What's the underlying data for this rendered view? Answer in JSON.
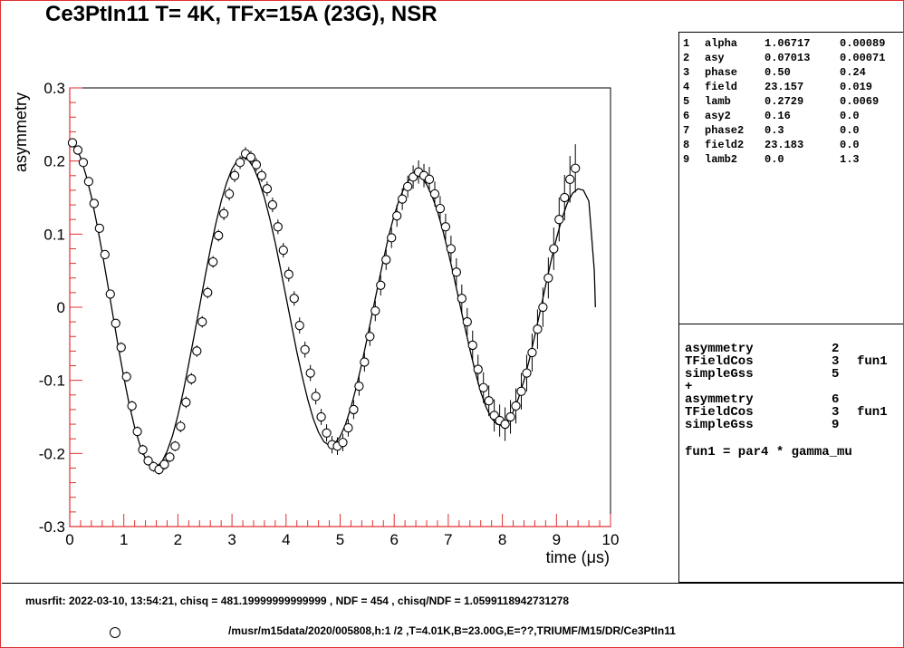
{
  "title": "Ce3PtIn11 T= 4K, TFx=15A  (23G), NSR",
  "parameters": [
    {
      "no": "1",
      "name": "alpha",
      "value": "1.06717",
      "error": "0.00089"
    },
    {
      "no": "2",
      "name": "asy",
      "value": "0.07013",
      "error": "0.00071"
    },
    {
      "no": "3",
      "name": "phase",
      "value": "0.50",
      "error": "0.24"
    },
    {
      "no": "4",
      "name": "field",
      "value": "23.157",
      "error": "0.019"
    },
    {
      "no": "5",
      "name": "lamb",
      "value": "0.2729",
      "error": "0.0069"
    },
    {
      "no": "6",
      "name": "asy2",
      "value": "0.16",
      "error": "0.0"
    },
    {
      "no": "7",
      "name": "phase2",
      "value": "0.3",
      "error": "0.0"
    },
    {
      "no": "8",
      "name": "field2",
      "value": "23.183",
      "error": "0.0"
    },
    {
      "no": "9",
      "name": "lamb2",
      "value": "0.0",
      "error": "1.3"
    }
  ],
  "theory": [
    {
      "a": "asymmetry",
      "b": "2",
      "c": ""
    },
    {
      "a": "TFieldCos",
      "b": "3",
      "c": "fun1"
    },
    {
      "a": "simpleGss",
      "b": "5",
      "c": ""
    },
    {
      "a": "+",
      "b": "",
      "c": ""
    },
    {
      "a": "asymmetry",
      "b": "6",
      "c": ""
    },
    {
      "a": "TFieldCos",
      "b": "3",
      "c": "fun1"
    },
    {
      "a": "simpleGss",
      "b": "9",
      "c": ""
    }
  ],
  "function_def": "fun1 = par4 * gamma_mu",
  "fit_info": "musrfit: 2022-03-10, 13:54:21, chisq = 481.19999999999999 , NDF = 454 , chisq/NDF = 1.0599118942731278",
  "legend_label": "/musr/m15data/2020/005808,h:1 /2 ,T=4.01K,B=23.00G,E=??,TRIUMF/M15/DR/Ce3PtIn11",
  "colors": {
    "frame": "#e03030",
    "axis": "#e03030",
    "data": "#000000"
  },
  "chart_data": {
    "type": "scatter",
    "xlabel": "time (μs)",
    "ylabel": "asymmetry",
    "xlim": [
      0,
      10
    ],
    "ylim": [
      -0.3,
      0.3
    ],
    "xticks": [
      "0",
      "1",
      "2",
      "3",
      "4",
      "5",
      "6",
      "7",
      "8",
      "9",
      "10"
    ],
    "yticks": [
      "-0.3",
      "-0.2",
      "-0.1",
      "0",
      "0.1",
      "0.2",
      "0.3"
    ],
    "grid": false,
    "series": [
      {
        "marker": "open-circle",
        "x": [
          0.05,
          0.15,
          0.25,
          0.35,
          0.45,
          0.55,
          0.65,
          0.75,
          0.85,
          0.95,
          1.05,
          1.15,
          1.25,
          1.35,
          1.45,
          1.55,
          1.65,
          1.75,
          1.85,
          1.95,
          2.05,
          2.15,
          2.25,
          2.35,
          2.45,
          2.55,
          2.65,
          2.75,
          2.85,
          2.95,
          3.05,
          3.15,
          3.25,
          3.35,
          3.45,
          3.55,
          3.65,
          3.75,
          3.85,
          3.95,
          4.05,
          4.15,
          4.25,
          4.35,
          4.45,
          4.55,
          4.65,
          4.75,
          4.85,
          4.95,
          5.05,
          5.15,
          5.25,
          5.35,
          5.45,
          5.55,
          5.65,
          5.75,
          5.85,
          5.95,
          6.05,
          6.15,
          6.25,
          6.35,
          6.45,
          6.55,
          6.65,
          6.75,
          6.85,
          6.95,
          7.05,
          7.15,
          7.25,
          7.35,
          7.45,
          7.55,
          7.65,
          7.75,
          7.85,
          7.95,
          8.05,
          8.15,
          8.25,
          8.35,
          8.45,
          8.55,
          8.65,
          8.75,
          8.85,
          8.95,
          9.05,
          9.15,
          9.25,
          9.35
        ],
        "y": [
          0.225,
          0.215,
          0.198,
          0.172,
          0.142,
          0.108,
          0.072,
          0.018,
          -0.022,
          -0.055,
          -0.095,
          -0.135,
          -0.17,
          -0.195,
          -0.21,
          -0.218,
          -0.222,
          -0.215,
          -0.205,
          -0.19,
          -0.163,
          -0.13,
          -0.098,
          -0.06,
          -0.02,
          0.02,
          0.062,
          0.098,
          0.128,
          0.155,
          0.18,
          0.198,
          0.21,
          0.205,
          0.195,
          0.18,
          0.162,
          0.14,
          0.11,
          0.078,
          0.045,
          0.012,
          -0.025,
          -0.058,
          -0.09,
          -0.122,
          -0.15,
          -0.172,
          -0.188,
          -0.19,
          -0.185,
          -0.165,
          -0.14,
          -0.108,
          -0.075,
          -0.04,
          -0.005,
          0.03,
          0.065,
          0.095,
          0.125,
          0.148,
          0.165,
          0.178,
          0.185,
          0.18,
          0.175,
          0.155,
          0.135,
          0.11,
          0.08,
          0.048,
          0.012,
          -0.02,
          -0.052,
          -0.085,
          -0.11,
          -0.128,
          -0.148,
          -0.155,
          -0.16,
          -0.15,
          -0.135,
          -0.115,
          -0.09,
          -0.062,
          -0.03,
          0.0,
          0.04,
          0.08,
          0.12,
          0.15,
          0.175,
          0.19
        ],
        "errors": [
          0.006,
          0.006,
          0.006,
          0.006,
          0.006,
          0.006,
          0.006,
          0.006,
          0.006,
          0.007,
          0.007,
          0.007,
          0.007,
          0.007,
          0.007,
          0.007,
          0.007,
          0.007,
          0.007,
          0.007,
          0.008,
          0.008,
          0.008,
          0.008,
          0.008,
          0.008,
          0.008,
          0.008,
          0.009,
          0.009,
          0.009,
          0.009,
          0.009,
          0.009,
          0.009,
          0.009,
          0.01,
          0.01,
          0.01,
          0.01,
          0.01,
          0.01,
          0.011,
          0.011,
          0.011,
          0.011,
          0.011,
          0.012,
          0.012,
          0.012,
          0.012,
          0.012,
          0.013,
          0.013,
          0.013,
          0.013,
          0.014,
          0.014,
          0.014,
          0.014,
          0.015,
          0.015,
          0.015,
          0.016,
          0.016,
          0.016,
          0.017,
          0.017,
          0.017,
          0.018,
          0.018,
          0.019,
          0.019,
          0.019,
          0.02,
          0.02,
          0.021,
          0.021,
          0.022,
          0.022,
          0.023,
          0.023,
          0.024,
          0.025,
          0.025,
          0.026,
          0.027,
          0.027,
          0.028,
          0.029,
          0.03,
          0.031,
          0.032,
          0.033
        ]
      },
      {
        "style": "line",
        "x": [
          0.0,
          0.1,
          0.2,
          0.3,
          0.4,
          0.5,
          0.6,
          0.7,
          0.8,
          0.9,
          1.0,
          1.1,
          1.2,
          1.3,
          1.4,
          1.5,
          1.6,
          1.7,
          1.8,
          1.9,
          2.0,
          2.1,
          2.2,
          2.3,
          2.4,
          2.5,
          2.6,
          2.7,
          2.8,
          2.9,
          3.0,
          3.1,
          3.2,
          3.3,
          3.4,
          3.5,
          3.6,
          3.7,
          3.8,
          3.9,
          4.0,
          4.1,
          4.2,
          4.3,
          4.4,
          4.5,
          4.6,
          4.7,
          4.8,
          4.9,
          5.0,
          5.1,
          5.2,
          5.3,
          5.4,
          5.5,
          5.6,
          5.7,
          5.8,
          5.9,
          6.0,
          6.1,
          6.2,
          6.3,
          6.4,
          6.5,
          6.6,
          6.7,
          6.8,
          6.9,
          7.0,
          7.1,
          7.2,
          7.3,
          7.4,
          7.5,
          7.6,
          7.7,
          7.8,
          7.9,
          8.0,
          8.1,
          8.2,
          8.3,
          8.4,
          8.5,
          8.6,
          8.7,
          8.8,
          8.9,
          9.0,
          9.1,
          9.2,
          9.3,
          9.4,
          9.5,
          9.6,
          9.7,
          9.72
        ],
        "y": [
          0.229,
          0.221,
          0.205,
          0.181,
          0.151,
          0.115,
          0.075,
          0.032,
          -0.012,
          -0.055,
          -0.096,
          -0.133,
          -0.164,
          -0.189,
          -0.207,
          -0.217,
          -0.218,
          -0.212,
          -0.197,
          -0.176,
          -0.148,
          -0.115,
          -0.078,
          -0.039,
          0.001,
          0.041,
          0.079,
          0.114,
          0.145,
          0.17,
          0.189,
          0.201,
          0.205,
          0.202,
          0.191,
          0.173,
          0.15,
          0.121,
          0.088,
          0.052,
          0.014,
          -0.024,
          -0.061,
          -0.095,
          -0.126,
          -0.152,
          -0.171,
          -0.184,
          -0.189,
          -0.186,
          -0.177,
          -0.16,
          -0.137,
          -0.109,
          -0.077,
          -0.042,
          -0.006,
          0.03,
          0.065,
          0.098,
          0.126,
          0.149,
          0.166,
          0.177,
          0.181,
          0.178,
          0.168,
          0.152,
          0.131,
          0.105,
          0.075,
          0.043,
          0.009,
          -0.025,
          -0.058,
          -0.089,
          -0.116,
          -0.137,
          -0.152,
          -0.16,
          -0.162,
          -0.156,
          -0.143,
          -0.124,
          -0.1,
          -0.071,
          -0.039,
          -0.005,
          0.03,
          0.063,
          0.094,
          0.121,
          0.142,
          0.156,
          0.162,
          0.16,
          0.145,
          0.05,
          -0.0
        ]
      }
    ]
  }
}
